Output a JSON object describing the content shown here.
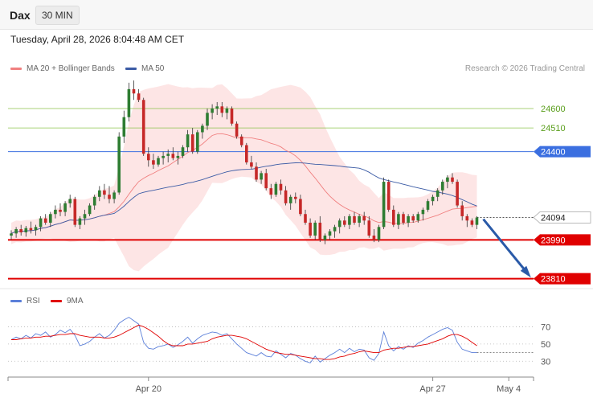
{
  "header": {
    "symbol": "Dax",
    "interval": "30 MIN",
    "timestamp": "Tuesday, April 28, 2026 8:04:48 AM CET"
  },
  "legend": {
    "ma20_label": "MA 20 + Bollinger Bands",
    "ma50_label": "MA 50",
    "copyright": "Research © 2026 Trading Central"
  },
  "rsi_legend": {
    "rsi_label": "RSI",
    "ma_label": "9MA"
  },
  "colors": {
    "bull_candle": "#2e7d32",
    "bear_candle": "#c62828",
    "bollinger_fill": "#fde0e0",
    "ma20": "#f08080",
    "ma50": "#3b5ba5",
    "pivot_line": "#3b6fe0",
    "support_line": "#e00000",
    "resistance_line": "#8bc34a",
    "rsi_line": "#5b7fd9",
    "rsi_ma_line": "#e00000",
    "forecast_arrow": "#2a5aa8"
  },
  "chart_data": [
    {
      "type": "candlestick",
      "title": "Dax 30 MIN",
      "x_labels": [
        "Apr 20",
        "Apr 27",
        "May 4"
      ],
      "y_range": [
        23760,
        24880
      ],
      "ohlc": [
        [
          24010,
          24035,
          23990,
          24020
        ],
        [
          24020,
          24050,
          24000,
          24040
        ],
        [
          24040,
          24060,
          24010,
          24025
        ],
        [
          24025,
          24055,
          24005,
          24045
        ],
        [
          24045,
          24075,
          24020,
          24035
        ],
        [
          24035,
          24060,
          24010,
          24050
        ],
        [
          24050,
          24100,
          24030,
          24090
        ],
        [
          24090,
          24110,
          24060,
          24070
        ],
        [
          24070,
          24120,
          24050,
          24110
        ],
        [
          24110,
          24150,
          24090,
          24130
        ],
        [
          24130,
          24160,
          24100,
          24120
        ],
        [
          24120,
          24170,
          24100,
          24160
        ],
        [
          24160,
          24200,
          24140,
          24180
        ],
        [
          24180,
          24190,
          24050,
          24060
        ],
        [
          24060,
          24100,
          24040,
          24090
        ],
        [
          24090,
          24130,
          24060,
          24110
        ],
        [
          24110,
          24160,
          24100,
          24150
        ],
        [
          24150,
          24200,
          24130,
          24190
        ],
        [
          24190,
          24240,
          24170,
          24220
        ],
        [
          24220,
          24250,
          24180,
          24200
        ],
        [
          24200,
          24240,
          24160,
          24180
        ],
        [
          24180,
          24220,
          24160,
          24210
        ],
        [
          24210,
          24490,
          24200,
          24470
        ],
        [
          24470,
          24590,
          24440,
          24560
        ],
        [
          24560,
          24720,
          24540,
          24690
        ],
        [
          24690,
          24730,
          24640,
          24670
        ],
        [
          24670,
          24690,
          24630,
          24640
        ],
        [
          24640,
          24650,
          24380,
          24390
        ],
        [
          24390,
          24420,
          24330,
          24360
        ],
        [
          24360,
          24390,
          24320,
          24340
        ],
        [
          24340,
          24380,
          24330,
          24370
        ],
        [
          24370,
          24400,
          24340,
          24380
        ],
        [
          24380,
          24410,
          24350,
          24390
        ],
        [
          24390,
          24420,
          24360,
          24370
        ],
        [
          24370,
          24400,
          24340,
          24380
        ],
        [
          24380,
          24430,
          24370,
          24420
        ],
        [
          24420,
          24500,
          24400,
          24480
        ],
        [
          24480,
          24510,
          24390,
          24400
        ],
        [
          24400,
          24500,
          24390,
          24490
        ],
        [
          24490,
          24530,
          24460,
          24520
        ],
        [
          24520,
          24600,
          24500,
          24580
        ],
        [
          24580,
          24620,
          24550,
          24600
        ],
        [
          24600,
          24630,
          24570,
          24610
        ],
        [
          24610,
          24630,
          24560,
          24580
        ],
        [
          24580,
          24610,
          24550,
          24600
        ],
        [
          24600,
          24610,
          24520,
          24530
        ],
        [
          24530,
          24540,
          24460,
          24470
        ],
        [
          24470,
          24480,
          24420,
          24430
        ],
        [
          24430,
          24440,
          24340,
          24350
        ],
        [
          24350,
          24380,
          24320,
          24330
        ],
        [
          24330,
          24350,
          24260,
          24270
        ],
        [
          24270,
          24310,
          24250,
          24300
        ],
        [
          24300,
          24320,
          24220,
          24230
        ],
        [
          24230,
          24250,
          24180,
          24200
        ],
        [
          24200,
          24260,
          24190,
          24250
        ],
        [
          24250,
          24270,
          24200,
          24220
        ],
        [
          24220,
          24240,
          24150,
          24160
        ],
        [
          24160,
          24200,
          24130,
          24190
        ],
        [
          24190,
          24210,
          24160,
          24180
        ],
        [
          24180,
          24200,
          24100,
          24110
        ],
        [
          24110,
          24130,
          24060,
          24070
        ],
        [
          24070,
          24090,
          24000,
          24010
        ],
        [
          24010,
          24080,
          23990,
          24070
        ],
        [
          24070,
          24100,
          23980,
          23990
        ],
        [
          23990,
          24020,
          23970,
          24010
        ],
        [
          24010,
          24040,
          23990,
          24030
        ],
        [
          24030,
          24060,
          24000,
          24050
        ],
        [
          24050,
          24090,
          24020,
          24080
        ],
        [
          24080,
          24100,
          24050,
          24060
        ],
        [
          24060,
          24110,
          24040,
          24100
        ],
        [
          24100,
          24120,
          24060,
          24070
        ],
        [
          24070,
          24110,
          24050,
          24100
        ],
        [
          24100,
          24120,
          24060,
          24080
        ],
        [
          24080,
          24100,
          24000,
          24010
        ],
        [
          24010,
          24040,
          23980,
          23990
        ],
        [
          23990,
          24060,
          23980,
          24050
        ],
        [
          24050,
          24280,
          24040,
          24260
        ],
        [
          24260,
          24270,
          24120,
          24130
        ],
        [
          24130,
          24150,
          24050,
          24060
        ],
        [
          24060,
          24120,
          24040,
          24110
        ],
        [
          24110,
          24120,
          24060,
          24070
        ],
        [
          24070,
          24110,
          24050,
          24100
        ],
        [
          24100,
          24110,
          24070,
          24080
        ],
        [
          24080,
          24120,
          24070,
          24110
        ],
        [
          24110,
          24140,
          24080,
          24130
        ],
        [
          24130,
          24180,
          24120,
          24170
        ],
        [
          24170,
          24200,
          24150,
          24190
        ],
        [
          24190,
          24230,
          24170,
          24220
        ],
        [
          24220,
          24270,
          24200,
          24260
        ],
        [
          24260,
          24290,
          24230,
          24280
        ],
        [
          24280,
          24300,
          24250,
          24260
        ],
        [
          24260,
          24270,
          24140,
          24150
        ],
        [
          24150,
          24170,
          24080,
          24100
        ],
        [
          24100,
          24110,
          24050,
          24080
        ],
        [
          24080,
          24090,
          24050,
          24060
        ],
        [
          24060,
          24100,
          24040,
          24094
        ]
      ],
      "levels": [
        {
          "label": "24600",
          "value": 24600,
          "kind": "resistance-light"
        },
        {
          "label": "24510",
          "value": 24510,
          "kind": "resistance-light"
        },
        {
          "label": "24400",
          "value": 24400,
          "kind": "pivot"
        },
        {
          "label": "24094",
          "value": 24094,
          "kind": "last-price"
        },
        {
          "label": "23990",
          "value": 23990,
          "kind": "support"
        },
        {
          "label": "23810",
          "value": 23810,
          "kind": "support"
        }
      ],
      "forecast": {
        "from_value": 24094,
        "to_value": 23810
      }
    },
    {
      "type": "line",
      "title": "RSI",
      "y_range": [
        20,
        90
      ],
      "y_ticks": [
        70,
        50,
        30
      ],
      "series": [
        {
          "name": "RSI",
          "values": [
            55,
            58,
            56,
            60,
            57,
            62,
            60,
            64,
            58,
            61,
            66,
            63,
            67,
            60,
            48,
            50,
            53,
            58,
            62,
            57,
            60,
            66,
            74,
            78,
            81,
            77,
            73,
            52,
            45,
            44,
            47,
            48,
            50,
            46,
            49,
            53,
            58,
            51,
            56,
            60,
            62,
            64,
            63,
            60,
            62,
            56,
            50,
            45,
            40,
            38,
            36,
            40,
            36,
            35,
            42,
            38,
            34,
            39,
            37,
            33,
            30,
            28,
            36,
            29,
            33,
            37,
            40,
            44,
            40,
            45,
            41,
            44,
            43,
            34,
            31,
            39,
            64,
            48,
            42,
            47,
            44,
            48,
            46,
            51,
            54,
            58,
            61,
            64,
            67,
            69,
            66,
            52,
            44,
            42,
            40,
            40
          ]
        },
        {
          "name": "9MA",
          "values": [
            55,
            55,
            56,
            57,
            57,
            58,
            58,
            59,
            59,
            60,
            61,
            61,
            62,
            62,
            60,
            59,
            58,
            58,
            58,
            57,
            57,
            58,
            60,
            63,
            66,
            69,
            72,
            70,
            67,
            63,
            59,
            54,
            50,
            48,
            48,
            48,
            50,
            50,
            51,
            52,
            53,
            56,
            58,
            59,
            60,
            60,
            59,
            58,
            56,
            53,
            50,
            47,
            44,
            42,
            40,
            39,
            38,
            38,
            37,
            36,
            35,
            34,
            33,
            33,
            32,
            32,
            33,
            35,
            36,
            38,
            39,
            41,
            42,
            41,
            40,
            40,
            43,
            44,
            45,
            45,
            46,
            47,
            47,
            48,
            49,
            50,
            52,
            54,
            56,
            59,
            61,
            61,
            59,
            56,
            52,
            48
          ]
        }
      ]
    }
  ]
}
